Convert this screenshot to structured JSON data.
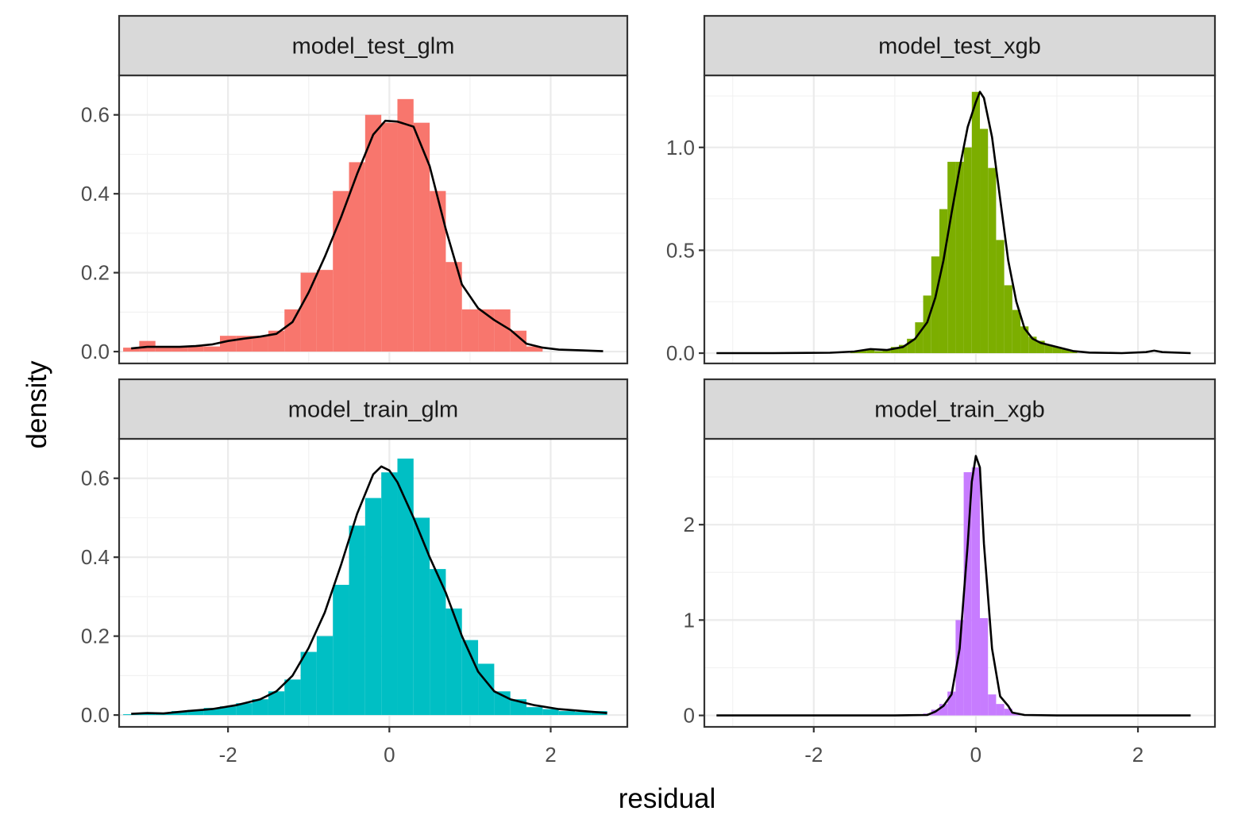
{
  "chart_data": {
    "type": "histogram-with-density",
    "xlabel": "residual",
    "ylabel": "density",
    "x_ticks": [
      -2,
      0,
      2
    ],
    "x_tick_labels": [
      "-2",
      "0",
      "2"
    ],
    "xlim": [
      -3.35,
      2.95
    ],
    "grid": true,
    "legend": "none",
    "facet_layout": "2x2",
    "panels": [
      {
        "title": "model_test_glm",
        "fill_color": "#F8766D",
        "ylim": [
          -0.03,
          0.7
        ],
        "y_ticks": [
          0.0,
          0.2,
          0.4,
          0.6
        ],
        "y_tick_labels": [
          "0.0",
          "0.2",
          "0.4",
          "0.6"
        ],
        "bin_width": 0.2,
        "bins": [
          [
            -3.2,
            0.01
          ],
          [
            -3.0,
            0.027
          ],
          [
            -2.8,
            0.013
          ],
          [
            -2.6,
            0.013
          ],
          [
            -2.4,
            0.013
          ],
          [
            -2.2,
            0.013
          ],
          [
            -2.0,
            0.04
          ],
          [
            -1.8,
            0.04
          ],
          [
            -1.6,
            0.04
          ],
          [
            -1.4,
            0.053
          ],
          [
            -1.2,
            0.107
          ],
          [
            -1.0,
            0.2
          ],
          [
            -0.8,
            0.207
          ],
          [
            -0.6,
            0.407
          ],
          [
            -0.4,
            0.48
          ],
          [
            -0.2,
            0.6
          ],
          [
            0.0,
            0.58
          ],
          [
            0.2,
            0.64
          ],
          [
            0.4,
            0.58
          ],
          [
            0.6,
            0.407
          ],
          [
            0.8,
            0.227
          ],
          [
            1.0,
            0.107
          ],
          [
            1.2,
            0.107
          ],
          [
            1.4,
            0.107
          ],
          [
            1.6,
            0.053
          ],
          [
            1.8,
            0.013
          ]
        ],
        "density": [
          [
            -3.2,
            0.008
          ],
          [
            -3.0,
            0.012
          ],
          [
            -2.8,
            0.012
          ],
          [
            -2.6,
            0.012
          ],
          [
            -2.4,
            0.014
          ],
          [
            -2.2,
            0.018
          ],
          [
            -2.0,
            0.027
          ],
          [
            -1.8,
            0.033
          ],
          [
            -1.6,
            0.038
          ],
          [
            -1.4,
            0.045
          ],
          [
            -1.2,
            0.075
          ],
          [
            -1.0,
            0.15
          ],
          [
            -0.8,
            0.24
          ],
          [
            -0.6,
            0.34
          ],
          [
            -0.4,
            0.45
          ],
          [
            -0.2,
            0.55
          ],
          [
            -0.05,
            0.585
          ],
          [
            0.1,
            0.583
          ],
          [
            0.3,
            0.57
          ],
          [
            0.5,
            0.47
          ],
          [
            0.7,
            0.31
          ],
          [
            0.9,
            0.17
          ],
          [
            1.1,
            0.11
          ],
          [
            1.3,
            0.08
          ],
          [
            1.5,
            0.055
          ],
          [
            1.7,
            0.02
          ],
          [
            1.9,
            0.01
          ],
          [
            2.1,
            0.005
          ],
          [
            2.4,
            0.003
          ],
          [
            2.65,
            0.001
          ]
        ]
      },
      {
        "title": "model_test_xgb",
        "fill_color": "#7CAE00",
        "ylim": [
          -0.05,
          1.35
        ],
        "y_ticks": [
          0.0,
          0.5,
          1.0
        ],
        "y_tick_labels": [
          "0.0",
          "0.5",
          "1.0"
        ],
        "bin_width": 0.1,
        "bins": [
          [
            -1.5,
            0.01
          ],
          [
            -1.4,
            0.015
          ],
          [
            -1.3,
            0.02
          ],
          [
            -1.2,
            0.01
          ],
          [
            -1.1,
            0.015
          ],
          [
            -1.0,
            0.03
          ],
          [
            -0.9,
            0.04
          ],
          [
            -0.8,
            0.07
          ],
          [
            -0.7,
            0.15
          ],
          [
            -0.6,
            0.28
          ],
          [
            -0.5,
            0.47
          ],
          [
            -0.4,
            0.7
          ],
          [
            -0.3,
            0.93
          ],
          [
            -0.2,
            0.93
          ],
          [
            -0.1,
            1.0
          ],
          [
            0.0,
            1.27
          ],
          [
            0.1,
            1.09
          ],
          [
            0.2,
            0.9
          ],
          [
            0.3,
            0.55
          ],
          [
            0.4,
            0.33
          ],
          [
            0.5,
            0.21
          ],
          [
            0.6,
            0.13
          ],
          [
            0.7,
            0.08
          ],
          [
            0.8,
            0.06
          ],
          [
            0.9,
            0.04
          ],
          [
            1.0,
            0.03
          ],
          [
            1.1,
            0.02
          ],
          [
            1.2,
            0.01
          ]
        ],
        "density": [
          [
            -3.2,
            0.0
          ],
          [
            -2.5,
            0.0
          ],
          [
            -1.8,
            0.002
          ],
          [
            -1.5,
            0.008
          ],
          [
            -1.3,
            0.02
          ],
          [
            -1.1,
            0.015
          ],
          [
            -0.9,
            0.03
          ],
          [
            -0.75,
            0.07
          ],
          [
            -0.6,
            0.15
          ],
          [
            -0.5,
            0.27
          ],
          [
            -0.4,
            0.45
          ],
          [
            -0.3,
            0.68
          ],
          [
            -0.2,
            0.9
          ],
          [
            -0.1,
            1.1
          ],
          [
            0.0,
            1.22
          ],
          [
            0.05,
            1.27
          ],
          [
            0.1,
            1.24
          ],
          [
            0.2,
            1.05
          ],
          [
            0.3,
            0.75
          ],
          [
            0.4,
            0.45
          ],
          [
            0.5,
            0.25
          ],
          [
            0.6,
            0.12
          ],
          [
            0.7,
            0.07
          ],
          [
            0.8,
            0.05
          ],
          [
            1.0,
            0.03
          ],
          [
            1.2,
            0.01
          ],
          [
            1.4,
            0.003
          ],
          [
            1.8,
            0.0
          ],
          [
            2.1,
            0.005
          ],
          [
            2.2,
            0.012
          ],
          [
            2.3,
            0.005
          ],
          [
            2.65,
            0.0
          ]
        ]
      },
      {
        "title": "model_train_glm",
        "fill_color": "#00BFC4",
        "ylim": [
          -0.03,
          0.7
        ],
        "y_ticks": [
          0.0,
          0.2,
          0.4,
          0.6
        ],
        "y_tick_labels": [
          "0.0",
          "0.2",
          "0.4",
          "0.6"
        ],
        "bin_width": 0.2,
        "bins": [
          [
            -3.2,
            0.002
          ],
          [
            -3.0,
            0.005
          ],
          [
            -2.8,
            0.006
          ],
          [
            -2.6,
            0.01
          ],
          [
            -2.4,
            0.013
          ],
          [
            -2.2,
            0.018
          ],
          [
            -2.0,
            0.022
          ],
          [
            -1.8,
            0.03
          ],
          [
            -1.6,
            0.04
          ],
          [
            -1.4,
            0.06
          ],
          [
            -1.2,
            0.09
          ],
          [
            -1.0,
            0.16
          ],
          [
            -0.8,
            0.2
          ],
          [
            -0.6,
            0.33
          ],
          [
            -0.4,
            0.48
          ],
          [
            -0.2,
            0.55
          ],
          [
            0.0,
            0.615
          ],
          [
            0.2,
            0.65
          ],
          [
            0.4,
            0.5
          ],
          [
            0.6,
            0.37
          ],
          [
            0.8,
            0.27
          ],
          [
            1.0,
            0.19
          ],
          [
            1.2,
            0.13
          ],
          [
            1.4,
            0.06
          ],
          [
            1.6,
            0.04
          ],
          [
            1.8,
            0.02
          ],
          [
            2.0,
            0.015
          ],
          [
            2.2,
            0.01
          ],
          [
            2.4,
            0.008
          ],
          [
            2.6,
            0.01
          ]
        ],
        "density": [
          [
            -3.2,
            0.003
          ],
          [
            -3.0,
            0.005
          ],
          [
            -2.8,
            0.004
          ],
          [
            -2.5,
            0.01
          ],
          [
            -2.2,
            0.015
          ],
          [
            -1.9,
            0.025
          ],
          [
            -1.6,
            0.04
          ],
          [
            -1.4,
            0.06
          ],
          [
            -1.2,
            0.1
          ],
          [
            -1.0,
            0.17
          ],
          [
            -0.8,
            0.26
          ],
          [
            -0.6,
            0.38
          ],
          [
            -0.4,
            0.51
          ],
          [
            -0.2,
            0.61
          ],
          [
            -0.1,
            0.63
          ],
          [
            0.0,
            0.62
          ],
          [
            0.1,
            0.59
          ],
          [
            0.3,
            0.5
          ],
          [
            0.5,
            0.4
          ],
          [
            0.7,
            0.31
          ],
          [
            0.9,
            0.2
          ],
          [
            1.1,
            0.11
          ],
          [
            1.3,
            0.06
          ],
          [
            1.5,
            0.04
          ],
          [
            1.8,
            0.025
          ],
          [
            2.1,
            0.015
          ],
          [
            2.4,
            0.01
          ],
          [
            2.7,
            0.005
          ]
        ]
      },
      {
        "title": "model_train_xgb",
        "fill_color": "#C77CFF",
        "ylim": [
          -0.12,
          2.9
        ],
        "y_ticks": [
          0,
          1,
          2
        ],
        "y_tick_labels": [
          "0",
          "1",
          "2"
        ],
        "bin_width": 0.1,
        "bins": [
          [
            -0.6,
            0.02
          ],
          [
            -0.5,
            0.06
          ],
          [
            -0.4,
            0.12
          ],
          [
            -0.3,
            0.25
          ],
          [
            -0.2,
            1.0
          ],
          [
            -0.1,
            2.55
          ],
          [
            0.0,
            2.6
          ],
          [
            0.1,
            1.02
          ],
          [
            0.2,
            0.22
          ],
          [
            0.3,
            0.12
          ],
          [
            0.4,
            0.07
          ],
          [
            0.5,
            0.02
          ]
        ],
        "density": [
          [
            -3.2,
            0.0
          ],
          [
            -2.0,
            0.0
          ],
          [
            -1.0,
            0.0
          ],
          [
            -0.6,
            0.005
          ],
          [
            -0.5,
            0.04
          ],
          [
            -0.4,
            0.1
          ],
          [
            -0.3,
            0.22
          ],
          [
            -0.2,
            0.7
          ],
          [
            -0.1,
            1.8
          ],
          [
            -0.05,
            2.45
          ],
          [
            0.0,
            2.72
          ],
          [
            0.05,
            2.6
          ],
          [
            0.1,
            1.8
          ],
          [
            0.2,
            0.7
          ],
          [
            0.3,
            0.2
          ],
          [
            0.4,
            0.1
          ],
          [
            0.45,
            0.03
          ],
          [
            0.6,
            0.005
          ],
          [
            1.0,
            0.0
          ],
          [
            2.0,
            0.0
          ],
          [
            2.65,
            0.0
          ]
        ]
      }
    ]
  }
}
